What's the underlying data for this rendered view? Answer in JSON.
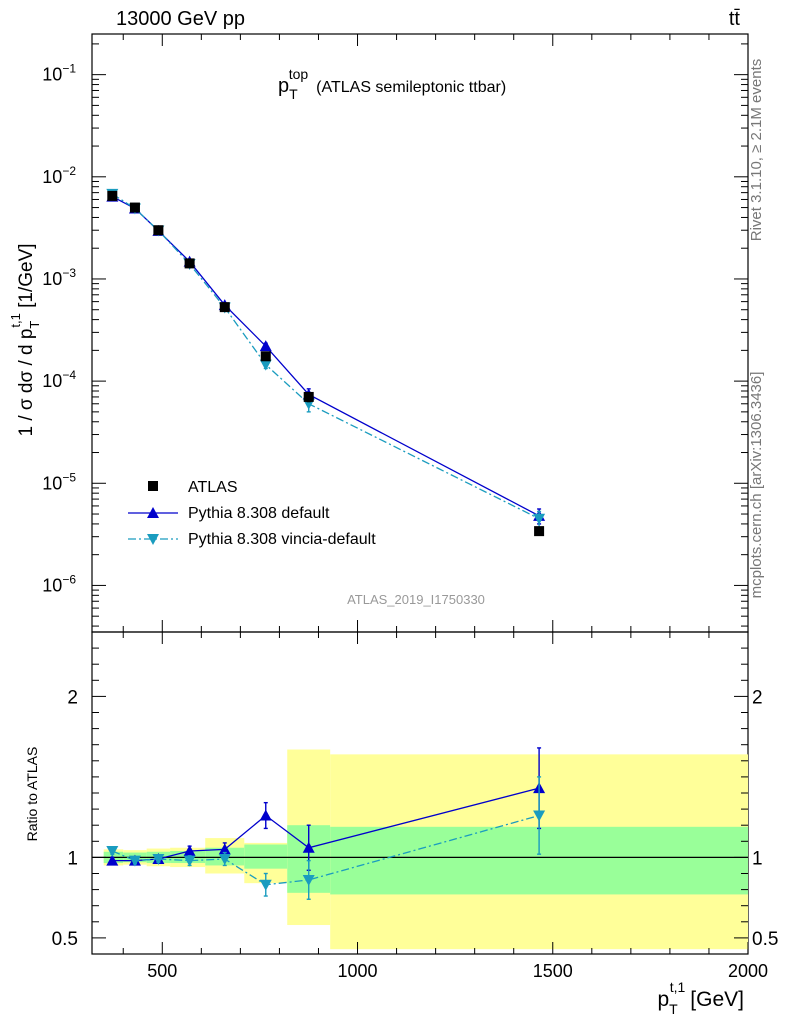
{
  "header": {
    "energy_label": "13000 GeV pp",
    "process_label": "tt̄"
  },
  "side": {
    "rivet_label": "Rivet 3.1.10, ≥ 2.1M events",
    "mcplots_label": "mcplots.cern.ch [arXiv:1306.3436]"
  },
  "analysis_id": "ATLAS_2019_I1750330",
  "colors": {
    "data": "#000000",
    "pythia_default": "#0000cc",
    "pythia_vincia": "#1a9cbf",
    "band_inner": "#99ff99",
    "band_outer": "#ffff99"
  },
  "chart_data": [
    {
      "type": "scatter",
      "panel": "main",
      "title_main": "p",
      "title_sub": "T",
      "title_sup": "top",
      "title_rest": "(ATLAS semileptonic ttbar)",
      "ylabel": "1 / σ dσ / d p_T^{t,1} [1/GeV]",
      "yscale": "log",
      "xlim": [
        320,
        2000
      ],
      "ylim": [
        3.5e-07,
        0.25
      ],
      "yticks": [
        {
          "value": 1e-06,
          "base": "10",
          "exp": "−6"
        },
        {
          "value": 1e-05,
          "base": "10",
          "exp": "−5"
        },
        {
          "value": 0.0001,
          "base": "10",
          "exp": "−4"
        },
        {
          "value": 0.001,
          "base": "10",
          "exp": "−3"
        },
        {
          "value": 0.01,
          "base": "10",
          "exp": "−2"
        },
        {
          "value": 0.1,
          "base": "10",
          "exp": "−1"
        }
      ],
      "legend_position": "bottom-left",
      "series": [
        {
          "name": "ATLAS",
          "marker": "square",
          "x": [
            372,
            430,
            490,
            570,
            660,
            765,
            875,
            1465
          ],
          "y": [
            0.0065,
            0.005,
            0.003,
            0.00142,
            0.00053,
            0.000175,
            7e-05,
            3.4e-06
          ],
          "yerr_low": [
            0.0003,
            0.0002,
            0.0001,
            5e-05,
            2e-05,
            1e-05,
            7e-06,
            3e-07
          ],
          "yerr_high": [
            0.0003,
            0.0002,
            0.0001,
            5e-05,
            2e-05,
            1e-05,
            7e-06,
            3e-07
          ]
        },
        {
          "name": "Pythia 8.308 default",
          "marker": "triangle-up",
          "line": "solid",
          "x": [
            372,
            430,
            490,
            570,
            660,
            765,
            875,
            1465
          ],
          "y": [
            0.0064,
            0.0049,
            0.00296,
            0.00148,
            0.000555,
            0.00022,
            7.4e-05,
            4.8e-06
          ],
          "yerr_low": [
            0.0001,
            8e-05,
            5e-05,
            3e-05,
            1.5e-05,
            1.5e-05,
            1e-05,
            8e-07
          ],
          "yerr_high": [
            0.0001,
            8e-05,
            5e-05,
            3e-05,
            1.5e-05,
            1.5e-05,
            1e-05,
            8e-07
          ]
        },
        {
          "name": "Pythia 8.308 vincia-default",
          "marker": "triangle-down",
          "line": "dashdot",
          "x": [
            372,
            430,
            490,
            570,
            660,
            765,
            875,
            1465
          ],
          "y": [
            0.0068,
            0.0049,
            0.00298,
            0.0014,
            0.000525,
            0.000145,
            6e-05,
            4.5e-06
          ],
          "yerr_low": [
            0.0001,
            8e-05,
            5e-05,
            3e-05,
            1.5e-05,
            1.2e-05,
            1e-05,
            8e-07
          ],
          "yerr_high": [
            0.0001,
            8e-05,
            5e-05,
            3e-05,
            1.5e-05,
            1.2e-05,
            1e-05,
            8e-07
          ]
        }
      ]
    },
    {
      "type": "line",
      "panel": "ratio",
      "ylabel": "Ratio to ATLAS",
      "xlabel_main": "p",
      "xlabel_sub": "T",
      "xlabel_sup": "t,1",
      "xlabel_unit": "[GeV]",
      "xlim": [
        320,
        2000
      ],
      "ylim": [
        0.4,
        2.4
      ],
      "xticks": [
        500,
        1000,
        1500,
        2000
      ],
      "yticks": [
        0.5,
        1,
        2
      ],
      "reference_line": 1,
      "bands": [
        {
          "xlow": 350,
          "xhigh": 400,
          "inner": [
            0.965,
            1.035
          ],
          "outer": [
            0.95,
            1.05
          ]
        },
        {
          "xlow": 400,
          "xhigh": 460,
          "inner": [
            0.97,
            1.03
          ],
          "outer": [
            0.955,
            1.045
          ]
        },
        {
          "xlow": 460,
          "xhigh": 520,
          "inner": [
            0.965,
            1.035
          ],
          "outer": [
            0.945,
            1.055
          ]
        },
        {
          "xlow": 520,
          "xhigh": 610,
          "inner": [
            0.965,
            1.04
          ],
          "outer": [
            0.94,
            1.06
          ]
        },
        {
          "xlow": 610,
          "xhigh": 710,
          "inner": [
            0.95,
            1.06
          ],
          "outer": [
            0.9,
            1.12
          ]
        },
        {
          "xlow": 710,
          "xhigh": 820,
          "inner": [
            0.93,
            1.08
          ],
          "outer": [
            0.84,
            1.09
          ]
        },
        {
          "xlow": 820,
          "xhigh": 930,
          "inner": [
            0.78,
            1.2
          ],
          "outer": [
            0.58,
            1.67
          ]
        },
        {
          "xlow": 930,
          "xhigh": 2000,
          "inner": [
            0.77,
            1.19
          ],
          "outer": [
            0.43,
            1.64
          ]
        }
      ],
      "series": [
        {
          "name": "Pythia 8.308 default",
          "marker": "triangle-up",
          "line": "solid",
          "x": [
            372,
            430,
            490,
            570,
            660,
            765,
            875,
            1465
          ],
          "y": [
            0.98,
            0.98,
            0.99,
            1.04,
            1.05,
            1.26,
            1.06,
            1.43
          ],
          "yerr_low": [
            0.02,
            0.02,
            0.02,
            0.03,
            0.04,
            0.08,
            0.14,
            0.25
          ],
          "yerr_high": [
            0.02,
            0.02,
            0.02,
            0.03,
            0.04,
            0.08,
            0.14,
            0.25
          ]
        },
        {
          "name": "Pythia 8.308 vincia-default",
          "marker": "triangle-down",
          "line": "dashdot",
          "x": [
            372,
            430,
            490,
            570,
            660,
            765,
            875,
            1465
          ],
          "y": [
            1.04,
            0.98,
            0.99,
            0.98,
            0.99,
            0.83,
            0.86,
            1.26
          ],
          "yerr_low": [
            0.02,
            0.02,
            0.02,
            0.03,
            0.04,
            0.07,
            0.12,
            0.24
          ],
          "yerr_high": [
            0.02,
            0.02,
            0.02,
            0.03,
            0.04,
            0.07,
            0.12,
            0.24
          ]
        }
      ]
    }
  ]
}
